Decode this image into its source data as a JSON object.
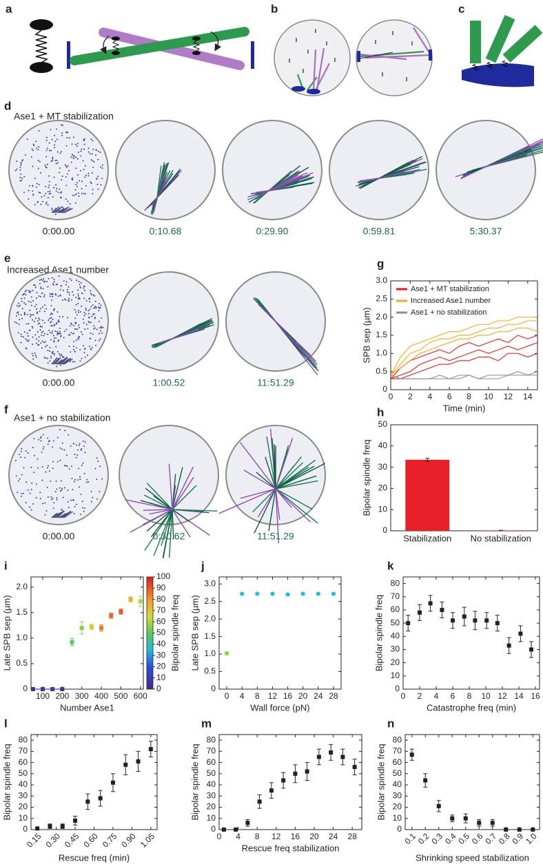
{
  "diagram_panels": [
    "a",
    "b",
    "c"
  ],
  "simulations": [
    {
      "panel": "d",
      "title": "Ase1 + MT stabilization",
      "times": [
        "0:00.00",
        "0:10.68",
        "0:29.90",
        "0:59.81",
        "5:30.37"
      ]
    },
    {
      "panel": "e",
      "title": "Increased Ase1 number",
      "times": [
        "0:00.00",
        "1:00.52",
        "11:51.29"
      ]
    },
    {
      "panel": "f",
      "title": "Ase1 + no stabilization",
      "times": [
        "0:00.00",
        "0:30.62",
        "11:51.29"
      ]
    }
  ],
  "chart_data": [
    {
      "type": "line",
      "panel": "g",
      "ylabel": "SPB sep (µm)",
      "xlabel": "Time (min)",
      "x": [
        0,
        1,
        2,
        3,
        4,
        5,
        6,
        7,
        8,
        9,
        10,
        11,
        12,
        13,
        14,
        15
      ],
      "xlim": [
        0,
        15
      ],
      "xticks": [
        0,
        2,
        4,
        6,
        8,
        10,
        12,
        14
      ],
      "ylim": [
        0,
        3
      ],
      "yticks": [
        0,
        0.5,
        {
          "value": 1,
          "label": "1.0"
        },
        1.5,
        {
          "value": 2,
          "label": "2.0"
        },
        2.5,
        {
          "value": 3,
          "label": "3.0"
        }
      ],
      "series": [
        {
          "name": "Ase1 + MT stabilization",
          "color": "#e41a1c",
          "traces": [
            [
              0.3,
              0.6,
              0.8,
              0.9,
              1.0,
              1.1,
              1.0,
              1.2,
              1.3,
              1.2,
              1.3,
              1.4,
              1.3,
              1.5,
              1.4,
              1.5
            ],
            [
              0.3,
              0.4,
              0.5,
              0.7,
              0.8,
              0.9,
              0.8,
              0.9,
              1.0,
              1.1,
              1.0,
              1.1,
              1.2,
              1.1,
              1.2,
              1.3
            ],
            [
              0.3,
              0.3,
              0.4,
              0.5,
              0.6,
              0.7,
              0.7,
              0.8,
              0.8,
              0.9,
              0.9,
              0.8,
              1.0,
              1.0,
              0.9,
              1.0
            ]
          ]
        },
        {
          "name": "Increased Ase1 number",
          "color": "#f5a623",
          "traces": [
            [
              0.4,
              0.9,
              1.2,
              1.3,
              1.4,
              1.5,
              1.6,
              1.6,
              1.7,
              1.8,
              1.8,
              1.9,
              1.9,
              2.0,
              2.0,
              2.0
            ],
            [
              0.4,
              0.7,
              1.0,
              1.1,
              1.3,
              1.4,
              1.4,
              1.5,
              1.5,
              1.6,
              1.7,
              1.7,
              1.8,
              1.8,
              1.9,
              1.9
            ],
            [
              0.4,
              0.6,
              0.8,
              1.0,
              1.1,
              1.2,
              1.3,
              1.4,
              1.4,
              1.5,
              1.5,
              1.6,
              1.6,
              1.7,
              1.7,
              1.6
            ]
          ]
        },
        {
          "name": "Ase1 + no stabilization",
          "color": "#8c8c8c",
          "traces": [
            [
              0.4,
              0.3,
              0.3,
              0.3,
              0.3,
              0.4,
              0.3,
              0.4,
              0.4,
              0.3,
              0.4,
              0.4,
              0.4,
              0.5,
              0.4,
              0.5
            ],
            [
              0.4,
              0.3,
              0.3,
              0.3,
              0.3,
              0.3,
              0.3,
              0.3,
              0.4,
              0.3,
              0.3,
              0.3,
              0.4,
              0.4,
              0.4,
              0.4
            ]
          ]
        }
      ]
    },
    {
      "type": "bar",
      "panel": "h",
      "ylabel": "Bipolar spindle freq",
      "color": "#e8202a",
      "categories": [
        "Stabilization",
        "No stabilization"
      ],
      "values": [
        33.5,
        0.2
      ],
      "errors": [
        0.7,
        0
      ],
      "ylim": [
        0,
        50
      ],
      "yticks": [
        0,
        10,
        20,
        30,
        40,
        50
      ]
    },
    {
      "type": "scatter",
      "panel": "i",
      "ylabel": "Late SPB sep (µm)",
      "xlabel": "Number Ase1",
      "marker": "square",
      "x": [
        50,
        100,
        150,
        200,
        250,
        300,
        350,
        400,
        450,
        500,
        550,
        600
      ],
      "values": [
        0,
        0,
        0,
        0,
        0.92,
        1.2,
        1.22,
        1.2,
        1.44,
        1.52,
        1.76,
        1.72
      ],
      "errors": [
        0,
        0,
        0,
        0,
        0.07,
        0.12,
        0.05,
        0.06,
        0.05,
        0.05,
        0.05,
        0.1
      ],
      "color_values": [
        5,
        5,
        5,
        5,
        50,
        55,
        70,
        85,
        88,
        90,
        75,
        60
      ],
      "xlim": [
        40,
        615
      ],
      "xticks": [
        100,
        200,
        300,
        400,
        500,
        600
      ],
      "ylim": [
        0,
        2.2
      ],
      "yticks": [
        0,
        0.5,
        {
          "value": 1,
          "label": "1.0"
        },
        1.5,
        {
          "value": 2,
          "label": "2.0"
        }
      ],
      "colorbar": {
        "label": "Bipolar spindle freq",
        "clim": [
          0,
          100
        ],
        "ticks": [
          0,
          10,
          20,
          30,
          40,
          50,
          60,
          70,
          80,
          90,
          100
        ]
      }
    },
    {
      "type": "scatter",
      "panel": "j",
      "ylabel": "Late SPB sep (µm)",
      "xlabel": "Wall force (pN)",
      "marker": "circle",
      "x": [
        0,
        4,
        8,
        12,
        16,
        20,
        24,
        28
      ],
      "values": [
        1.02,
        2.72,
        2.72,
        2.72,
        2.7,
        2.72,
        2.72,
        2.72
      ],
      "errors": [
        0.04,
        0.02,
        0.02,
        0.02,
        0.03,
        0.02,
        0.02,
        0.02
      ],
      "point_colors": [
        "#8fcf4a",
        "#1fbcd2",
        "#1fbcd2",
        "#1fbcd2",
        "#1fbcd2",
        "#1fbcd2",
        "#1fbcd2",
        "#1fbcd2"
      ],
      "xlim": [
        -2,
        30
      ],
      "xticks": [
        0,
        4,
        8,
        12,
        16,
        20,
        24,
        28
      ],
      "ylim": [
        0,
        3.2
      ],
      "yticks": [
        0,
        0.5,
        {
          "value": 1,
          "label": "1.0"
        },
        1.5,
        {
          "value": 2,
          "label": "2.0"
        },
        2.5,
        {
          "value": 3,
          "label": "3.0"
        }
      ]
    },
    {
      "type": "scatter",
      "panel": "k",
      "ylabel": "Bipolar spindle freq",
      "xlabel": "Catastrophe freq (min)",
      "marker": "square",
      "color": "#222222",
      "x": [
        0.6,
        2,
        3.3,
        4.7,
        6,
        7.4,
        8.7,
        10.1,
        11.4,
        12.8,
        14.2,
        15.5
      ],
      "values": [
        50,
        58,
        65,
        60,
        52,
        55,
        52,
        52,
        50,
        33,
        42,
        30
      ],
      "errors": [
        6,
        6,
        6,
        6,
        6,
        7,
        7,
        6,
        6,
        6,
        6,
        6
      ],
      "xlim": [
        0,
        16.5
      ],
      "xticks": [
        0,
        2,
        4,
        6,
        8,
        10,
        12,
        14,
        16
      ],
      "ylim": [
        0,
        85
      ],
      "yticks": [
        0,
        10,
        20,
        30,
        40,
        50,
        60,
        70,
        80
      ]
    },
    {
      "type": "scatter",
      "panel": "l",
      "ylabel": "Bipolar spindle freq",
      "xlabel": "Rescue freq (min)",
      "marker": "square",
      "color": "#222222",
      "xtick_rotation": 45,
      "x": [
        0.15,
        0.25,
        0.35,
        0.45,
        0.55,
        0.65,
        0.75,
        0.85,
        0.95,
        1.05
      ],
      "values": [
        1,
        3,
        3,
        8,
        25,
        28,
        42,
        58,
        61,
        72
      ],
      "errors": [
        1,
        2,
        2,
        4,
        7,
        7,
        8,
        9,
        9,
        7
      ],
      "xlim": [
        0.1,
        1.1
      ],
      "xticks": [
        0.15,
        {
          "value": 0.3,
          "label": "0.30"
        },
        0.45,
        {
          "value": 0.6,
          "label": "0.60"
        },
        0.75,
        {
          "value": 0.9,
          "label": "0.90"
        },
        1.05
      ],
      "ylim": [
        0,
        85
      ],
      "yticks": [
        0,
        10,
        20,
        30,
        40,
        50,
        60,
        70,
        80
      ]
    },
    {
      "type": "scatter",
      "panel": "m",
      "ylabel": "Bipolar spindle freq",
      "xlabel": "Rescue freq stabilization",
      "marker": "square",
      "color": "#222222",
      "x": [
        1,
        3.5,
        6,
        8.5,
        11,
        13.5,
        16,
        18.5,
        21,
        23.5,
        26,
        28.5
      ],
      "values": [
        0,
        0,
        6,
        25,
        35,
        44,
        50,
        52,
        65,
        69,
        65,
        56
      ],
      "errors": [
        0.5,
        0.5,
        3,
        6,
        7,
        7,
        8,
        8,
        7,
        7,
        7,
        7
      ],
      "xlim": [
        0,
        30
      ],
      "xticks": [
        0,
        4,
        8,
        12,
        16,
        20,
        24,
        28
      ],
      "ylim": [
        0,
        85
      ],
      "yticks": [
        0,
        10,
        20,
        30,
        40,
        50,
        60,
        70,
        80
      ]
    },
    {
      "type": "scatter",
      "panel": "n",
      "ylabel": "Bipolar spindle freq",
      "xlabel": "Shrinking speed stabilization",
      "marker": "square",
      "color": "#222222",
      "xtick_rotation": 45,
      "x": [
        0.1,
        0.2,
        0.3,
        0.4,
        0.5,
        0.6,
        0.7,
        0.8,
        0.9,
        1.0
      ],
      "values": [
        67,
        44,
        21,
        10,
        10,
        6,
        6,
        0,
        0,
        0
      ],
      "errors": [
        5,
        6,
        5,
        3,
        4,
        3,
        3,
        0.5,
        0.5,
        0.5
      ],
      "xlim": [
        0.05,
        1.05
      ],
      "xticks": [
        0.1,
        0.2,
        0.3,
        0.4,
        0.5,
        0.6,
        0.7,
        0.8,
        0.9,
        {
          "value": 1,
          "label": "1.0"
        }
      ],
      "ylim": [
        0,
        85
      ],
      "yticks": [
        0,
        10,
        20,
        30,
        40,
        50,
        60,
        70,
        80
      ]
    }
  ]
}
